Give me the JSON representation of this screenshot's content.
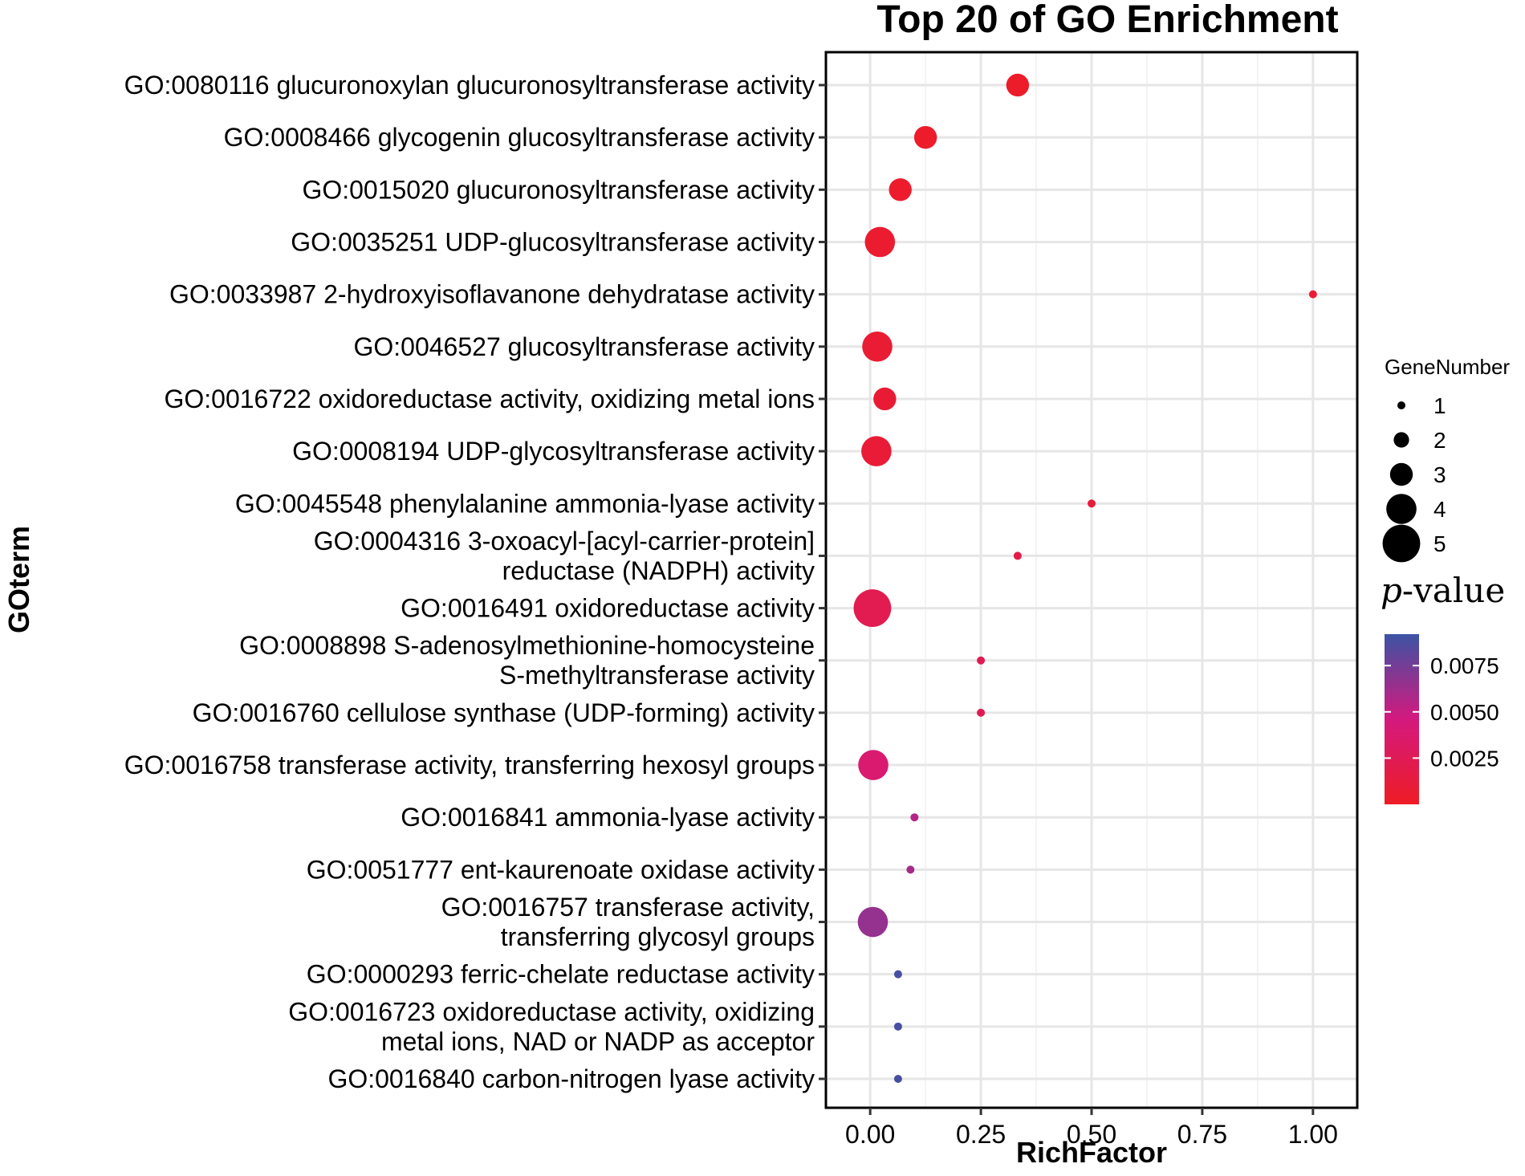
{
  "chart_data": {
    "type": "scatter",
    "title": "Top 20 of GO Enrichment",
    "xlabel": "RichFactor",
    "ylabel": "GOterm",
    "xlim": [
      -0.1,
      1.1
    ],
    "xticks": [
      0.0,
      0.25,
      0.5,
      0.75,
      1.0
    ],
    "xtick_labels": [
      "0.00",
      "0.25",
      "0.50",
      "0.75",
      "1.00"
    ],
    "grid": true,
    "points": [
      {
        "term": [
          "GO:0080116 glucuronoxylan glucuronosyltransferase activity"
        ],
        "rich_factor": 0.333,
        "gene_number": 3,
        "p_value": 0.0002
      },
      {
        "term": [
          "GO:0008466 glycogenin glucosyltransferase activity"
        ],
        "rich_factor": 0.125,
        "gene_number": 3,
        "p_value": 0.0003
      },
      {
        "term": [
          "GO:0015020 glucuronosyltransferase activity"
        ],
        "rich_factor": 0.068,
        "gene_number": 3,
        "p_value": 0.0004
      },
      {
        "term": [
          "GO:0035251 UDP-glucosyltransferase activity"
        ],
        "rich_factor": 0.022,
        "gene_number": 4,
        "p_value": 0.0005
      },
      {
        "term": [
          "GO:0033987 2-hydroxyisoflavanone dehydratase activity"
        ],
        "rich_factor": 1.0,
        "gene_number": 1,
        "p_value": 0.0006
      },
      {
        "term": [
          "GO:0046527 glucosyltransferase activity"
        ],
        "rich_factor": 0.016,
        "gene_number": 4,
        "p_value": 0.0007
      },
      {
        "term": [
          "GO:0016722 oxidoreductase activity, oxidizing metal ions"
        ],
        "rich_factor": 0.033,
        "gene_number": 3,
        "p_value": 0.0008
      },
      {
        "term": [
          "GO:0008194 UDP-glycosyltransferase activity"
        ],
        "rich_factor": 0.014,
        "gene_number": 4,
        "p_value": 0.0009
      },
      {
        "term": [
          "GO:0045548 phenylalanine ammonia-lyase activity"
        ],
        "rich_factor": 0.5,
        "gene_number": 1,
        "p_value": 0.0012
      },
      {
        "term": [
          "GO:0004316 3-oxoacyl-[acyl-carrier-protein]",
          "reductase (NADPH) activity"
        ],
        "rich_factor": 0.333,
        "gene_number": 1,
        "p_value": 0.0017
      },
      {
        "term": [
          "GO:0016491 oxidoreductase activity"
        ],
        "rich_factor": 0.005,
        "gene_number": 5,
        "p_value": 0.0022
      },
      {
        "term": [
          "GO:0008898 S-adenosylmethionine-homocysteine",
          "S-methyltransferase activity"
        ],
        "rich_factor": 0.25,
        "gene_number": 1,
        "p_value": 0.0024
      },
      {
        "term": [
          "GO:0016760 cellulose synthase (UDP-forming) activity"
        ],
        "rich_factor": 0.25,
        "gene_number": 1,
        "p_value": 0.0024
      },
      {
        "term": [
          "GO:0016758 transferase activity, transferring hexosyl groups"
        ],
        "rich_factor": 0.007,
        "gene_number": 4,
        "p_value": 0.0038
      },
      {
        "term": [
          "GO:0016841 ammonia-lyase activity"
        ],
        "rich_factor": 0.1,
        "gene_number": 1,
        "p_value": 0.0055
      },
      {
        "term": [
          "GO:0051777 ent-kaurenoate oxidase activity"
        ],
        "rich_factor": 0.091,
        "gene_number": 1,
        "p_value": 0.006
      },
      {
        "term": [
          "GO:0016757 transferase activity,",
          "transferring glycosyl groups"
        ],
        "rich_factor": 0.006,
        "gene_number": 4,
        "p_value": 0.0065
      },
      {
        "term": [
          "GO:0000293 ferric-chelate reductase activity"
        ],
        "rich_factor": 0.063,
        "gene_number": 1,
        "p_value": 0.0088
      },
      {
        "term": [
          "GO:0016723 oxidoreductase activity, oxidizing",
          "metal ions, NAD or NADP as acceptor"
        ],
        "rich_factor": 0.063,
        "gene_number": 1,
        "p_value": 0.0088
      },
      {
        "term": [
          "GO:0016840 carbon-nitrogen lyase activity"
        ],
        "rich_factor": 0.063,
        "gene_number": 1,
        "p_value": 0.0088
      }
    ],
    "size_legend": {
      "title": "GeneNumber",
      "values": [
        1,
        2,
        3,
        4,
        5
      ],
      "labels": [
        "1",
        "2",
        "3",
        "4",
        "5"
      ]
    },
    "color_legend": {
      "title_italic": "p",
      "title_rest": "-value",
      "min": 0.0,
      "max": 0.0092,
      "ticks": [
        0.0025,
        0.005,
        0.0075
      ],
      "tick_labels": [
        "0.0025",
        "0.0050",
        "0.0075"
      ],
      "color_low": "#ee1c25",
      "color_mid": "#d4197e",
      "color_high": "#3b53a4"
    }
  }
}
